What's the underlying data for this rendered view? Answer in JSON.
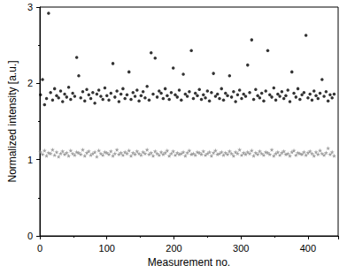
{
  "chart_data": {
    "type": "scatter",
    "x_label": "Measurement no.",
    "y_label": "Normalized intensity [a.u.]",
    "xlim": [
      0,
      445
    ],
    "xticks": [
      0,
      100,
      200,
      300,
      400
    ],
    "ylim": [
      0,
      3
    ],
    "yticks": [
      0,
      1,
      2,
      3
    ],
    "grid": false,
    "x": [
      1,
      4,
      7,
      10,
      13,
      16,
      19,
      22,
      25,
      28,
      31,
      34,
      37,
      40,
      43,
      46,
      49,
      52,
      55,
      58,
      61,
      64,
      67,
      70,
      73,
      76,
      79,
      82,
      85,
      88,
      91,
      94,
      97,
      100,
      103,
      106,
      109,
      112,
      115,
      118,
      121,
      124,
      127,
      130,
      133,
      136,
      139,
      142,
      145,
      148,
      151,
      154,
      157,
      160,
      163,
      166,
      169,
      172,
      175,
      178,
      181,
      184,
      187,
      190,
      193,
      196,
      199,
      202,
      205,
      208,
      211,
      214,
      217,
      220,
      223,
      226,
      229,
      232,
      235,
      238,
      241,
      244,
      247,
      250,
      253,
      256,
      259,
      262,
      265,
      268,
      271,
      274,
      277,
      280,
      283,
      286,
      289,
      292,
      295,
      298,
      301,
      304,
      307,
      310,
      313,
      316,
      319,
      322,
      325,
      328,
      331,
      334,
      337,
      340,
      343,
      346,
      349,
      352,
      355,
      358,
      361,
      364,
      367,
      370,
      373,
      376,
      379,
      382,
      385,
      388,
      391,
      394,
      397,
      400,
      403,
      406,
      409,
      412,
      415,
      418,
      421,
      424,
      427,
      430,
      433,
      436,
      439
    ],
    "series": [
      {
        "color": "#000000",
        "marker": "circle",
        "values": [
          1.85,
          2.05,
          1.72,
          1.8,
          2.92,
          1.88,
          1.78,
          1.93,
          1.84,
          1.81,
          1.9,
          1.76,
          1.86,
          1.82,
          1.95,
          1.79,
          1.87,
          1.83,
          2.34,
          2.1,
          1.81,
          1.89,
          1.77,
          1.92,
          1.85,
          1.8,
          1.88,
          1.74,
          1.86,
          1.91,
          1.83,
          1.79,
          1.94,
          1.84,
          1.78,
          1.87,
          2.26,
          1.82,
          1.9,
          1.76,
          1.86,
          1.93,
          1.8,
          1.85,
          2.15,
          1.79,
          1.88,
          1.83,
          1.91,
          1.77,
          1.84,
          1.89,
          1.81,
          1.96,
          1.78,
          2.4,
          1.86,
          2.33,
          1.82,
          1.9,
          1.87,
          1.8,
          1.93,
          1.84,
          1.79,
          1.88,
          2.2,
          1.85,
          1.82,
          1.91,
          1.78,
          2.12,
          1.86,
          1.83,
          1.89,
          2.43,
          1.8,
          1.87,
          1.84,
          1.92,
          1.79,
          1.85,
          1.81,
          1.9,
          1.77,
          1.88,
          2.13,
          1.83,
          1.86,
          1.8,
          1.93,
          1.78,
          1.87,
          1.84,
          2.1,
          1.82,
          1.89,
          1.76,
          1.85,
          1.91,
          1.8,
          1.86,
          1.83,
          2.24,
          1.88,
          2.57,
          1.79,
          1.92,
          1.84,
          1.81,
          1.87,
          1.77,
          1.9,
          2.43,
          1.85,
          1.82,
          1.94,
          1.78,
          1.86,
          1.83,
          1.89,
          1.8,
          1.84,
          1.91,
          1.76,
          2.15,
          1.87,
          1.82,
          1.93,
          1.79,
          1.85,
          1.88,
          2.63,
          1.81,
          1.86,
          1.78,
          1.9,
          1.84,
          1.8,
          1.87,
          2.05,
          1.83,
          1.89,
          1.77,
          1.85,
          1.81,
          1.86
        ]
      },
      {
        "color": "#888888",
        "marker": "star",
        "values": [
          1.1,
          1.07,
          1.12,
          1.05,
          1.09,
          1.08,
          1.13,
          1.06,
          1.1,
          1.04,
          1.08,
          1.11,
          1.07,
          1.09,
          1.05,
          1.12,
          1.08,
          1.06,
          1.1,
          1.09,
          1.07,
          1.13,
          1.05,
          1.09,
          1.11,
          1.06,
          1.08,
          1.1,
          1.04,
          1.12,
          1.08,
          1.06,
          1.1,
          1.09,
          1.07,
          1.11,
          1.05,
          1.08,
          1.13,
          1.07,
          1.09,
          1.06,
          1.1,
          1.08,
          1.12,
          1.05,
          1.09,
          1.07,
          1.11,
          1.08,
          1.06,
          1.1,
          1.08,
          1.13,
          1.07,
          1.09,
          1.05,
          1.11,
          1.08,
          1.06,
          1.1,
          1.07,
          1.09,
          1.12,
          1.05,
          1.08,
          1.11,
          1.06,
          1.09,
          1.07,
          1.08,
          1.1,
          1.05,
          1.09,
          1.12,
          1.07,
          1.08,
          1.06,
          1.1,
          1.09,
          1.07,
          1.11,
          1.06,
          1.08,
          1.1,
          1.05,
          1.09,
          1.12,
          1.07,
          1.08,
          1.1,
          1.06,
          1.09,
          1.07,
          1.11,
          1.08,
          1.05,
          1.1,
          1.08,
          1.13,
          1.06,
          1.09,
          1.07,
          1.1,
          1.08,
          1.12,
          1.05,
          1.09,
          1.07,
          1.11,
          1.08,
          1.06,
          1.1,
          1.09,
          1.07,
          1.13,
          1.05,
          1.08,
          1.1,
          1.06,
          1.09,
          1.11,
          1.07,
          1.08,
          1.05,
          1.1,
          1.12,
          1.06,
          1.09,
          1.08,
          1.07,
          1.1,
          1.06,
          1.09,
          1.11,
          1.08,
          1.05,
          1.1,
          1.07,
          1.12,
          1.08,
          1.06,
          1.09,
          1.15,
          1.07,
          1.1,
          1.05
        ]
      }
    ]
  }
}
